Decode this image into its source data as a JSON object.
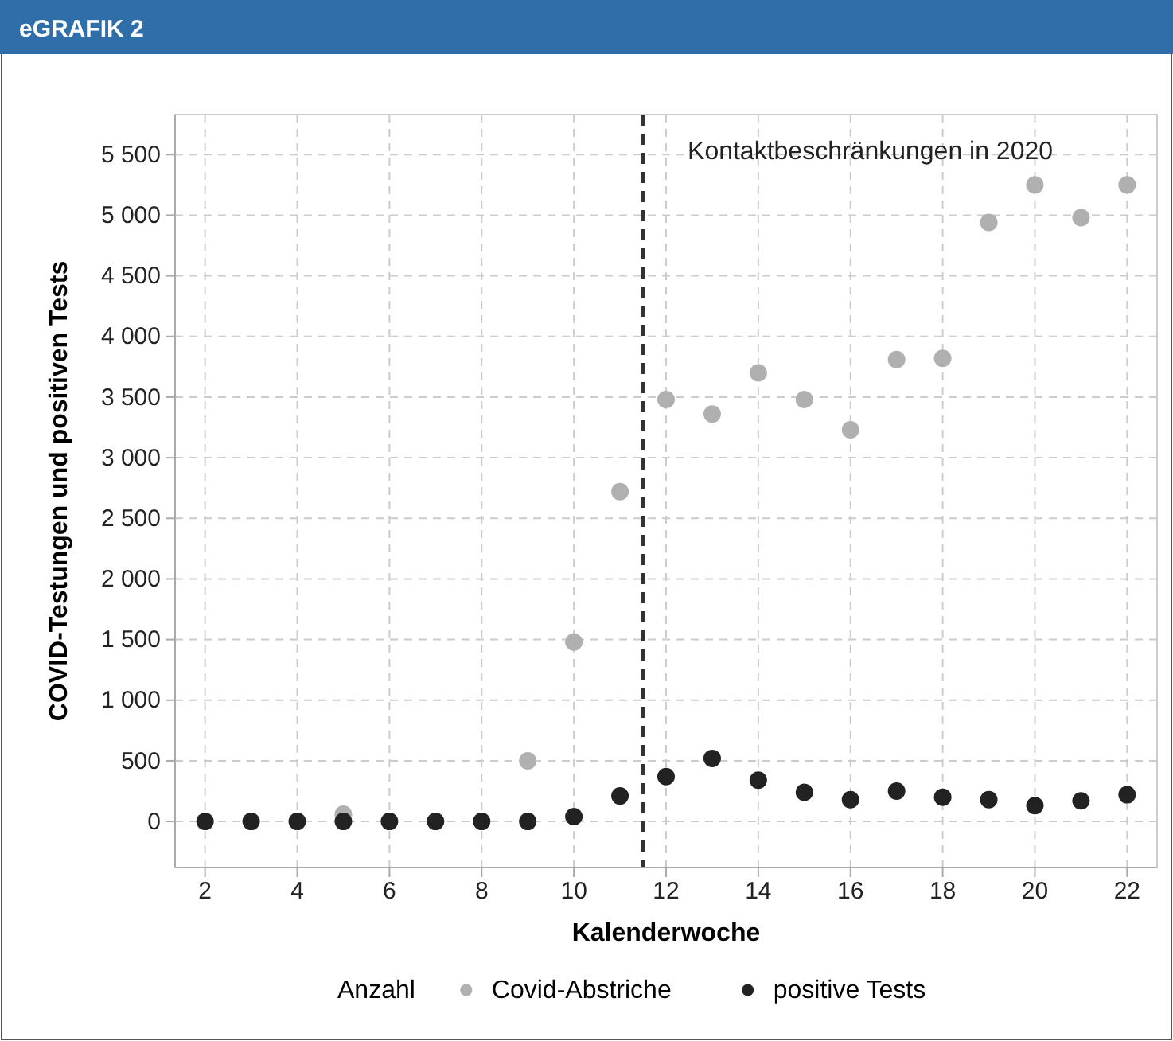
{
  "chart_data": {
    "type": "scatter",
    "title": "eGRAFIK 2",
    "xlabel": "Kalenderwoche",
    "ylabel": "COVID-Testungen und positiven Tests",
    "legend_title": "Anzahl",
    "x": [
      2,
      3,
      4,
      5,
      6,
      7,
      8,
      9,
      10,
      11,
      12,
      13,
      14,
      15,
      16,
      17,
      18,
      19,
      20,
      21,
      22
    ],
    "series": [
      {
        "name": "Covid-Abstriche",
        "color": "#b0b0b0",
        "values": [
          null,
          null,
          null,
          60,
          null,
          null,
          null,
          500,
          1480,
          2720,
          3480,
          3360,
          3700,
          3480,
          3230,
          3810,
          3820,
          4940,
          5250,
          4980,
          5250
        ]
      },
      {
        "name": "positive Tests",
        "color": "#222222",
        "values": [
          0,
          0,
          0,
          0,
          0,
          0,
          0,
          0,
          40,
          210,
          370,
          520,
          340,
          240,
          180,
          250,
          200,
          180,
          130,
          170,
          220
        ]
      }
    ],
    "xlim": [
      1.35,
      22.65
    ],
    "ylim": [
      -380,
      5830
    ],
    "xticks": [
      2,
      4,
      6,
      8,
      10,
      12,
      14,
      16,
      18,
      20,
      22
    ],
    "yticks": [
      {
        "value": 0,
        "label": "0"
      },
      {
        "value": 500,
        "label": "500"
      },
      {
        "value": 1000,
        "label": "1 000"
      },
      {
        "value": 1500,
        "label": "1 500"
      },
      {
        "value": 2000,
        "label": "2 000"
      },
      {
        "value": 2500,
        "label": "2 500"
      },
      {
        "value": 3000,
        "label": "3 000"
      },
      {
        "value": 3500,
        "label": "3 500"
      },
      {
        "value": 4000,
        "label": "4 000"
      },
      {
        "value": 4500,
        "label": "4 500"
      },
      {
        "value": 5000,
        "label": "5 000"
      },
      {
        "value": 5500,
        "label": "5 500"
      }
    ],
    "ref_lines": [
      {
        "axis": "x",
        "value": 11.5,
        "label": "Kontaktbeschränkungen in 2020",
        "color": "#333333",
        "line_style": "dashed"
      }
    ],
    "grid": true,
    "legend": "bottom",
    "marker": "circle"
  }
}
